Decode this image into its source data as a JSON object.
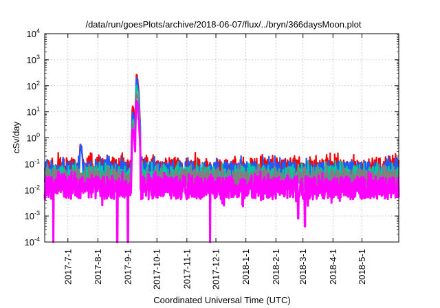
{
  "chart_data": {
    "type": "line",
    "title": "/data/run/goesPlots/archive/2018-06-07/flux/../bryn/366daysMoon.plot",
    "xlabel": "Coordinated Universal Time (UTC)",
    "ylabel": "cSv/day",
    "yscale": "log",
    "ylim": [
      0.0001,
      10000
    ],
    "y_ticks": [
      {
        "value": 0.0001,
        "base": "10",
        "exp": "-4"
      },
      {
        "value": 0.001,
        "base": "10",
        "exp": "-3"
      },
      {
        "value": 0.01,
        "base": "10",
        "exp": "-2"
      },
      {
        "value": 0.1,
        "base": "10",
        "exp": "-1"
      },
      {
        "value": 1,
        "base": "10",
        "exp": "0"
      },
      {
        "value": 10,
        "base": "10",
        "exp": "1"
      },
      {
        "value": 100,
        "base": "10",
        "exp": "2"
      },
      {
        "value": 1000,
        "base": "10",
        "exp": "3"
      },
      {
        "value": 10000,
        "base": "10",
        "exp": "4"
      }
    ],
    "xlim": [
      "2017-06-07",
      "2018-06-08"
    ],
    "x_ticks": [
      "2017-7-1",
      "2017-8-1",
      "2017-9-1",
      "2017-10-1",
      "2017-11-1",
      "2017-12-1",
      "2018-1-1",
      "2018-2-1",
      "2018-3-1",
      "2018-4-1",
      "2018-5-1"
    ],
    "x_tick_dates": [
      "2017-07-01",
      "2017-08-01",
      "2017-09-01",
      "2017-10-01",
      "2017-11-01",
      "2017-12-01",
      "2018-01-01",
      "2018-02-01",
      "2018-03-01",
      "2018-04-01",
      "2018-05-01"
    ],
    "grid": true,
    "legend": "none",
    "series": [
      {
        "color": "#ff0000",
        "baseline": 0.06,
        "events": [
          {
            "date": "2017-07-14",
            "peak": 0.65
          },
          {
            "date": "2017-09-06",
            "peak": 15
          },
          {
            "date": "2017-09-10",
            "peak": 250
          }
        ]
      },
      {
        "color": "#1e5bff",
        "baseline": 0.045,
        "events": [
          {
            "date": "2017-07-14",
            "peak": 0.5
          },
          {
            "date": "2017-09-06",
            "peak": 10
          },
          {
            "date": "2017-09-10",
            "peak": 180
          }
        ]
      },
      {
        "color": "#00c8a0",
        "baseline": 0.03,
        "events": [
          {
            "date": "2017-09-06",
            "peak": 5
          },
          {
            "date": "2017-09-10",
            "peak": 90
          }
        ]
      },
      {
        "color": "#808080",
        "baseline": 0.022,
        "events": [
          {
            "date": "2017-09-06",
            "peak": 3
          },
          {
            "date": "2017-09-10",
            "peak": 50
          }
        ]
      },
      {
        "color": "#ff00ff",
        "baseline": 0.012,
        "events": [
          {
            "date": "2017-09-06",
            "peak": 2
          },
          {
            "date": "2017-09-10",
            "peak": 25
          }
        ],
        "dips": [
          {
            "date": "2017-06-16",
            "min": 0.0001
          },
          {
            "date": "2017-08-21",
            "min": 0.0001
          },
          {
            "date": "2017-09-01",
            "min": 0.0001
          },
          {
            "date": "2017-11-25",
            "min": 0.0001
          },
          {
            "date": "2018-02-24",
            "min": 0.0008
          },
          {
            "date": "2018-03-03",
            "min": 0.0004
          },
          {
            "date": "2018-03-06",
            "min": 0.0025
          }
        ]
      }
    ]
  }
}
